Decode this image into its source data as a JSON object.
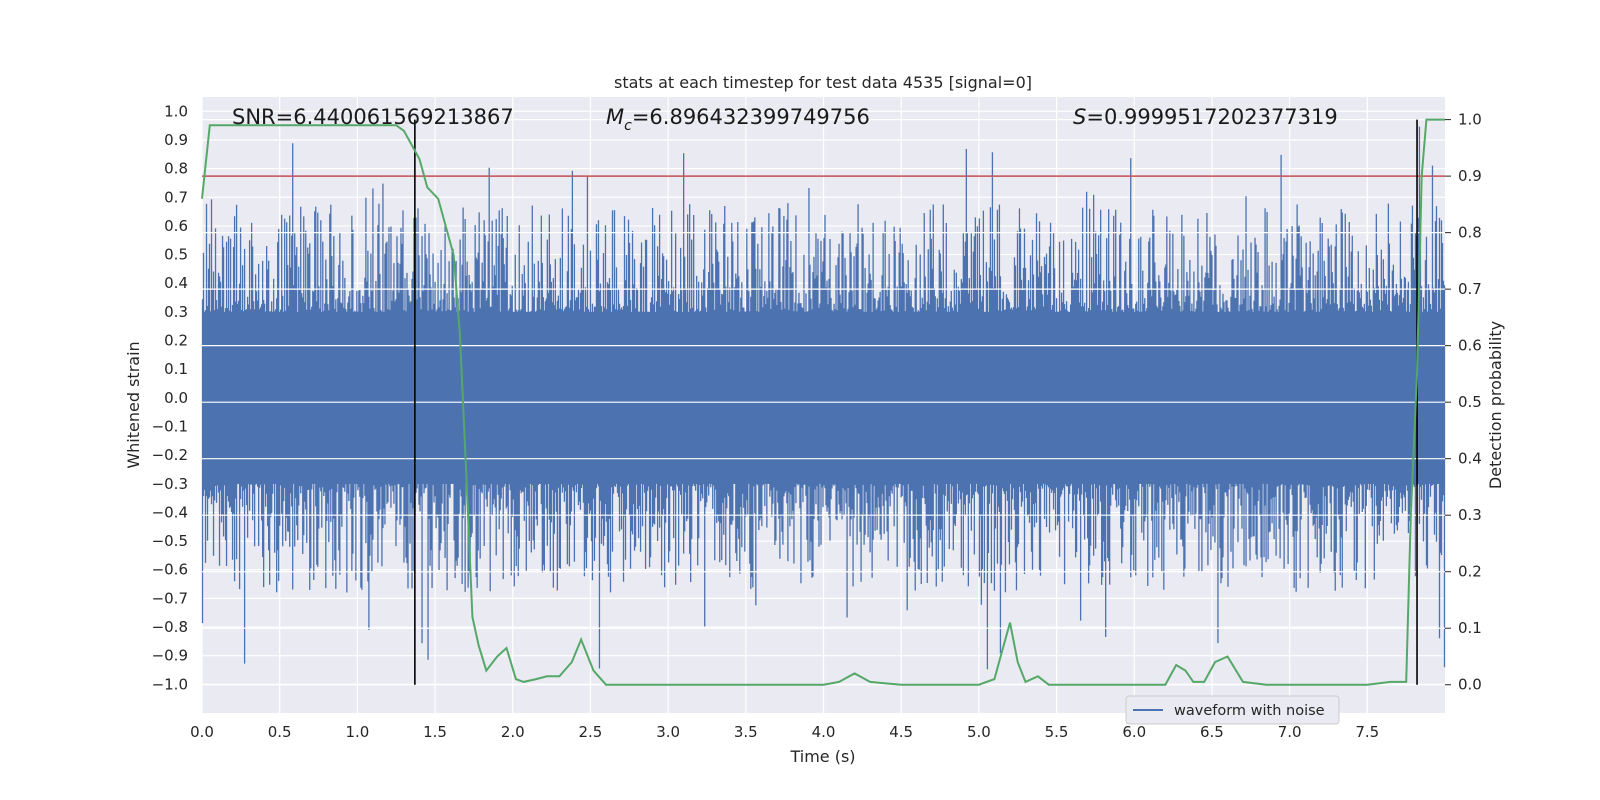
{
  "chart_data": {
    "type": "line",
    "title": "stats at each timestep for test data 4535 [signal=0]",
    "xlabel": "Time (s)",
    "ylabel_left": "Whitened strain",
    "ylabel_right": "Detection probability",
    "xlim": [
      0.0,
      8.0
    ],
    "ylim_left": [
      -1.1,
      1.05
    ],
    "ylim_right": [
      -0.05,
      1.04
    ],
    "xticks": [
      "0.0",
      "0.5",
      "1.0",
      "1.5",
      "2.0",
      "2.5",
      "3.0",
      "3.5",
      "4.0",
      "4.5",
      "5.0",
      "5.5",
      "6.0",
      "6.5",
      "7.0",
      "7.5"
    ],
    "xtick_values": [
      0.0,
      0.5,
      1.0,
      1.5,
      2.0,
      2.5,
      3.0,
      3.5,
      4.0,
      4.5,
      5.0,
      5.5,
      6.0,
      6.5,
      7.0,
      7.5
    ],
    "yticks_left": [
      "1.0",
      "0.9",
      "0.8",
      "0.7",
      "0.6",
      "0.5",
      "0.4",
      "0.3",
      "0.2",
      "0.1",
      "0.0",
      "−0.1",
      "−0.2",
      "−0.3",
      "−0.4",
      "−0.5",
      "−0.6",
      "−0.7",
      "−0.8",
      "−0.9",
      "−1.0"
    ],
    "ytick_values_left": [
      1.0,
      0.9,
      0.8,
      0.7,
      0.6,
      0.5,
      0.4,
      0.3,
      0.2,
      0.1,
      0.0,
      -0.1,
      -0.2,
      -0.3,
      -0.4,
      -0.5,
      -0.6,
      -0.7,
      -0.8,
      -0.9,
      -1.0
    ],
    "yticks_right": [
      "1.0",
      "0.9",
      "0.8",
      "0.7",
      "0.6",
      "0.5",
      "0.4",
      "0.3",
      "0.2",
      "0.1",
      "0.0"
    ],
    "ytick_values_right": [
      1.0,
      0.9,
      0.8,
      0.7,
      0.6,
      0.5,
      0.4,
      0.3,
      0.2,
      0.1,
      0.0
    ],
    "annotations": {
      "snr": "SNR=6.440061569213867",
      "mc_symbol": "M",
      "mc_sub": "c",
      "mc_value": "=6.896432399749756",
      "s_symbol": "S",
      "s_value": "=0.9999517202377319"
    },
    "legend": {
      "label": "waveform with noise",
      "location": "lower-right"
    },
    "threshold": {
      "value": 0.9,
      "axis": "right",
      "color": "#c44e52"
    },
    "vlines": [
      1.37,
      7.82
    ],
    "waveform": {
      "name": "waveform with noise",
      "color": "#4c72b0",
      "core_amplitude": 0.3
    },
    "detection_probability": {
      "name": "detection probability",
      "color": "#55a868",
      "x": [
        0.0,
        0.05,
        0.2,
        0.5,
        0.8,
        1.0,
        1.15,
        1.25,
        1.3,
        1.4,
        1.45,
        1.52,
        1.58,
        1.62,
        1.66,
        1.7,
        1.74,
        1.78,
        1.83,
        1.9,
        1.96,
        2.02,
        2.07,
        2.15,
        2.22,
        2.3,
        2.38,
        2.44,
        2.52,
        2.6,
        2.7,
        3.0,
        3.5,
        4.0,
        4.1,
        4.2,
        4.3,
        4.5,
        4.6,
        4.8,
        5.0,
        5.1,
        5.2,
        5.25,
        5.3,
        5.38,
        5.45,
        5.55,
        5.8,
        6.0,
        6.2,
        6.27,
        6.33,
        6.38,
        6.45,
        6.52,
        6.6,
        6.7,
        6.85,
        7.0,
        7.2,
        7.5,
        7.65,
        7.75,
        7.78,
        7.82,
        7.85,
        7.88,
        8.0
      ],
      "y": [
        0.86,
        0.99,
        0.99,
        0.99,
        0.99,
        0.99,
        0.99,
        0.99,
        0.98,
        0.93,
        0.88,
        0.86,
        0.8,
        0.76,
        0.62,
        0.38,
        0.12,
        0.07,
        0.025,
        0.05,
        0.065,
        0.01,
        0.005,
        0.01,
        0.015,
        0.015,
        0.04,
        0.08,
        0.025,
        0.0,
        0.0,
        0.0,
        0.0,
        0.0,
        0.005,
        0.02,
        0.005,
        0.0,
        0.0,
        0.0,
        0.0,
        0.01,
        0.11,
        0.04,
        0.005,
        0.015,
        0.0,
        0.0,
        0.0,
        0.0,
        0.0,
        0.035,
        0.025,
        0.005,
        0.005,
        0.04,
        0.05,
        0.005,
        0.0,
        0.0,
        0.0,
        0.0,
        0.005,
        0.005,
        0.3,
        0.55,
        0.9,
        1.0,
        1.0
      ]
    }
  }
}
